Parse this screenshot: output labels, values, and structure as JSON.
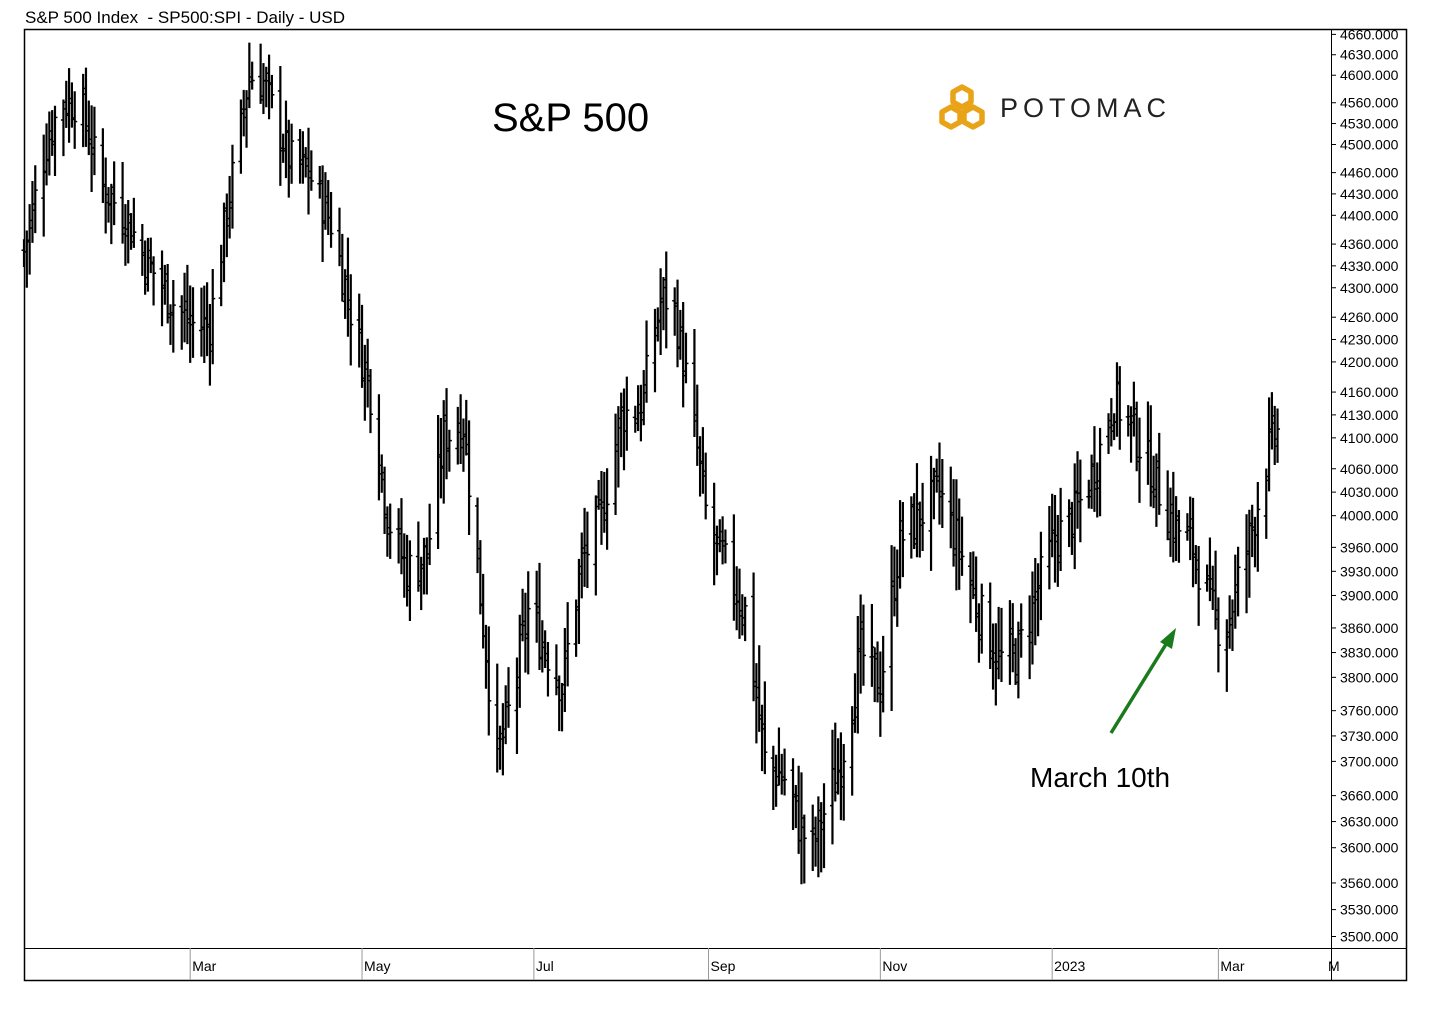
{
  "header": {
    "title": "S&P 500 Index  - SP500:SPI - Daily - USD"
  },
  "brand": {
    "name": "POTOMAC",
    "color": "#E8A317"
  },
  "chart_data": {
    "type": "ohlc-bar",
    "title": "S&P 500",
    "series_name": "S&P 500 Index",
    "y_axis": {
      "position": "right",
      "range": [
        3495,
        4665
      ],
      "scale": "log",
      "ticks": [
        3500,
        3530,
        3560,
        3600,
        3630,
        3660,
        3700,
        3730,
        3760,
        3800,
        3830,
        3860,
        3900,
        3930,
        3960,
        4000,
        4030,
        4060,
        4100,
        4130,
        4160,
        4200,
        4230,
        4260,
        4300,
        4330,
        4360,
        4400,
        4430,
        4460,
        4500,
        4530,
        4560,
        4600,
        4630,
        4660
      ],
      "tick_labels": [
        "3500.000",
        "3530.000",
        "3560.000",
        "3600.000",
        "3630.000",
        "3660.000",
        "3700.000",
        "3730.000",
        "3760.000",
        "3800.000",
        "3830.000",
        "3860.000",
        "3900.000",
        "3930.000",
        "3960.000",
        "4000.000",
        "4030.000",
        "4060.000",
        "4100.000",
        "4130.000",
        "4160.000",
        "4200.000",
        "4230.000",
        "4260.000",
        "4300.000",
        "4330.000",
        "4360.000",
        "4400.000",
        "4430.000",
        "4460.000",
        "4500.000",
        "4530.000",
        "4560.000",
        "4600.000",
        "4630.000",
        "4660.000"
      ]
    },
    "x_axis": {
      "range_days": [
        -28,
        409
      ],
      "ticks": [
        {
          "day": 31,
          "label": "Mar"
        },
        {
          "day": 92,
          "label": "May"
        },
        {
          "day": 153,
          "label": "Jul"
        },
        {
          "day": 215,
          "label": "Sep"
        },
        {
          "day": 276,
          "label": "Nov"
        },
        {
          "day": 337,
          "label": "2023"
        },
        {
          "day": 396,
          "label": "Mar"
        },
        {
          "day": 457,
          "label": "May"
        }
      ]
    },
    "path_points": [
      {
        "day": -28,
        "value": 4350
      },
      {
        "day": -20,
        "value": 4500
      },
      {
        "day": -15,
        "value": 4560
      },
      {
        "day": -8,
        "value": 4560
      },
      {
        "day": 0,
        "value": 4440
      },
      {
        "day": 8,
        "value": 4400
      },
      {
        "day": 15,
        "value": 4340
      },
      {
        "day": 23,
        "value": 4290
      },
      {
        "day": 31,
        "value": 4250
      },
      {
        "day": 38,
        "value": 4250
      },
      {
        "day": 45,
        "value": 4430
      },
      {
        "day": 52,
        "value": 4600
      },
      {
        "day": 57,
        "value": 4590
      },
      {
        "day": 66,
        "value": 4480
      },
      {
        "day": 73,
        "value": 4460
      },
      {
        "day": 81,
        "value": 4390
      },
      {
        "day": 88,
        "value": 4270
      },
      {
        "day": 95,
        "value": 4160
      },
      {
        "day": 101,
        "value": 4000
      },
      {
        "day": 108,
        "value": 3930
      },
      {
        "day": 115,
        "value": 3950
      },
      {
        "day": 121,
        "value": 4100
      },
      {
        "day": 128,
        "value": 4120
      },
      {
        "day": 134,
        "value": 3900
      },
      {
        "day": 140,
        "value": 3700
      },
      {
        "day": 145,
        "value": 3770
      },
      {
        "day": 151,
        "value": 3880
      },
      {
        "day": 158,
        "value": 3830
      },
      {
        "day": 163,
        "value": 3790
      },
      {
        "day": 170,
        "value": 3940
      },
      {
        "day": 177,
        "value": 4000
      },
      {
        "day": 184,
        "value": 4130
      },
      {
        "day": 191,
        "value": 4140
      },
      {
        "day": 198,
        "value": 4280
      },
      {
        "day": 202,
        "value": 4290
      },
      {
        "day": 208,
        "value": 4160
      },
      {
        "day": 215,
        "value": 3980
      },
      {
        "day": 222,
        "value": 3930
      },
      {
        "day": 228,
        "value": 3880
      },
      {
        "day": 235,
        "value": 3700
      },
      {
        "day": 242,
        "value": 3680
      },
      {
        "day": 248,
        "value": 3620
      },
      {
        "day": 252,
        "value": 3600
      },
      {
        "day": 256,
        "value": 3640
      },
      {
        "day": 262,
        "value": 3700
      },
      {
        "day": 269,
        "value": 3830
      },
      {
        "day": 276,
        "value": 3790
      },
      {
        "day": 283,
        "value": 3970
      },
      {
        "day": 290,
        "value": 4000
      },
      {
        "day": 297,
        "value": 4030
      },
      {
        "day": 304,
        "value": 3960
      },
      {
        "day": 311,
        "value": 3880
      },
      {
        "day": 318,
        "value": 3820
      },
      {
        "day": 325,
        "value": 3830
      },
      {
        "day": 331,
        "value": 3900
      },
      {
        "day": 338,
        "value": 3970
      },
      {
        "day": 345,
        "value": 4000
      },
      {
        "day": 352,
        "value": 4060
      },
      {
        "day": 359,
        "value": 4150
      },
      {
        "day": 366,
        "value": 4110
      },
      {
        "day": 373,
        "value": 4050
      },
      {
        "day": 380,
        "value": 3990
      },
      {
        "day": 387,
        "value": 3960
      },
      {
        "day": 394,
        "value": 3880
      },
      {
        "day": 398,
        "value": 3850
      },
      {
        "day": 404,
        "value": 3930
      },
      {
        "day": 409,
        "value": 4000
      },
      {
        "day": 415,
        "value": 4100
      },
      {
        "day": 418,
        "value": 4110
      }
    ],
    "annotation": {
      "text": "March 10th",
      "arrow_color": "#1B7A1B",
      "target_day": 398,
      "target_value": 3860
    }
  }
}
